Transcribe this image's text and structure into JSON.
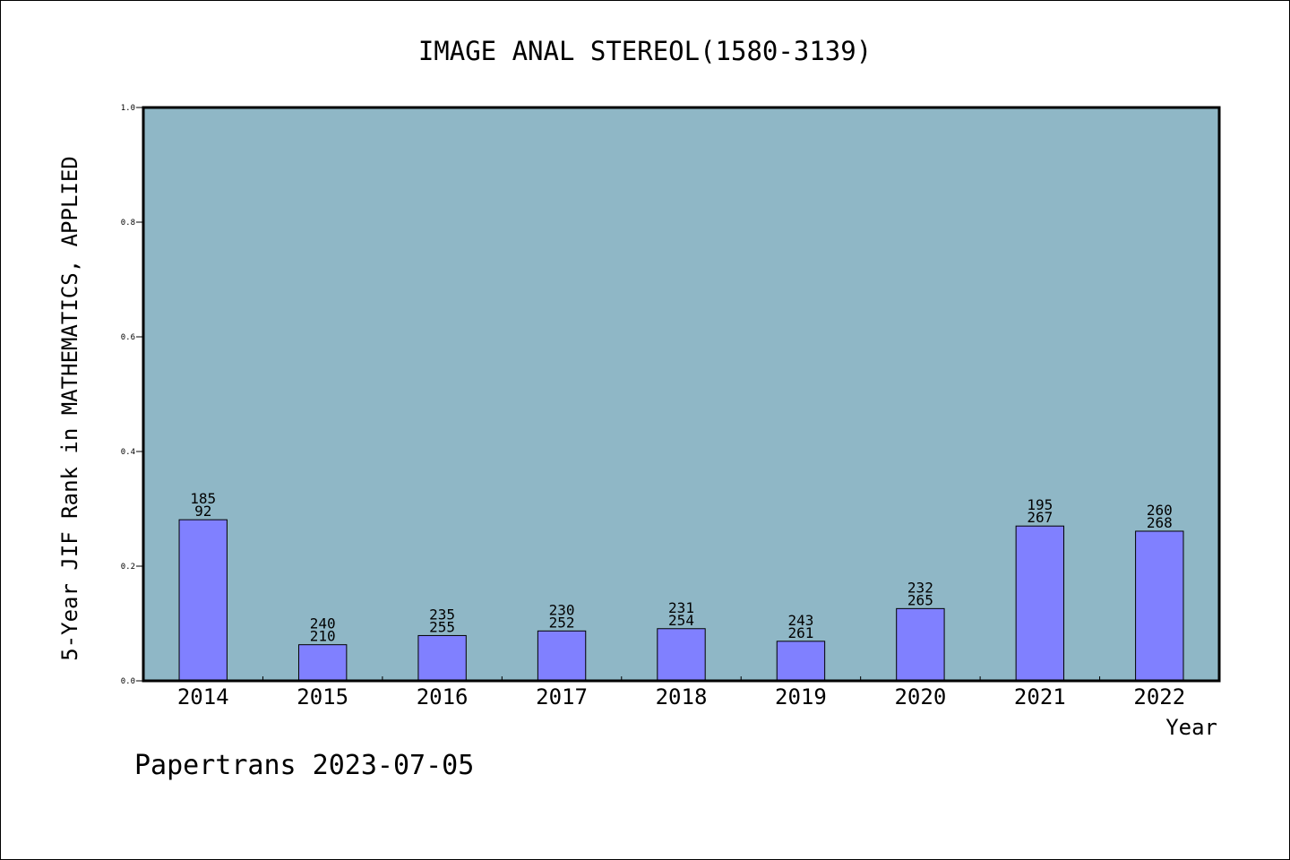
{
  "chart_data": {
    "type": "bar",
    "title": "IMAGE ANAL STEREOL(1580-3139)",
    "xlabel": "Year",
    "ylabel": "5-Year JIF Rank in MATHEMATICS, APPLIED",
    "ylim": [
      0,
      1.0
    ],
    "yticks": [
      "0.0",
      "0.2",
      "0.4",
      "0.6",
      "0.8",
      "1.0"
    ],
    "categories": [
      "2014",
      "2015",
      "2016",
      "2017",
      "2018",
      "2019",
      "2020",
      "2021",
      "2022"
    ],
    "values": [
      0.281,
      0.063,
      0.079,
      0.087,
      0.091,
      0.069,
      0.126,
      0.27,
      0.261
    ],
    "label_top": [
      "185",
      "240",
      "235",
      "230",
      "231",
      "243",
      "232",
      "195",
      "260"
    ],
    "label_bottom": [
      "92",
      "210",
      "255",
      "252",
      "254",
      "261",
      "265",
      "267",
      "268"
    ],
    "grid": false,
    "colors": {
      "plot_background": "#8fb7c6",
      "bar_fill": "#8080ff",
      "bar_stroke": "#000000"
    }
  },
  "footer": {
    "credit": "Papertrans 2023-07-05"
  }
}
